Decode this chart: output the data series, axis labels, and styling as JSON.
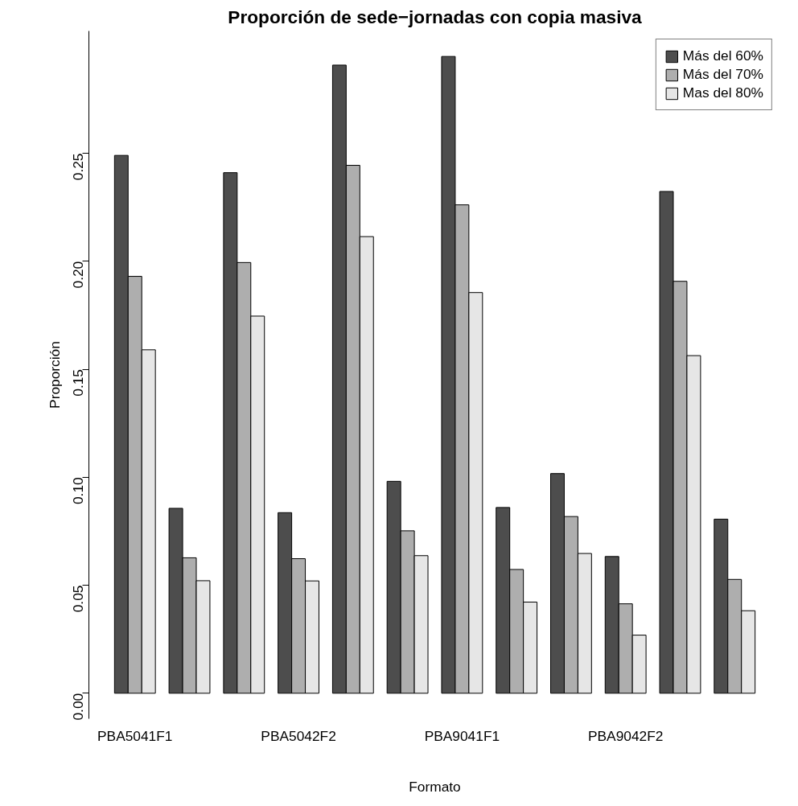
{
  "chart_data": {
    "type": "bar",
    "title": "Proporción de sede−jornadas con copia masiva",
    "xlabel": "Formato",
    "ylabel": "Proporción",
    "categories": [
      "PBA5041F1",
      null,
      null,
      "PBA5042F2",
      null,
      null,
      "PBA9041F1",
      null,
      null,
      "PBA9042F2",
      null,
      null
    ],
    "series": [
      {
        "name": "Más del 60%",
        "color": "#4d4d4d",
        "values": [
          0.249,
          0.0856,
          0.241,
          0.0836,
          0.2908,
          0.0981,
          0.2948,
          0.086,
          0.1017,
          0.0633,
          0.2323,
          0.0806
        ]
      },
      {
        "name": "Más del 70%",
        "color": "#aeaeae",
        "values": [
          0.193,
          0.0627,
          0.1994,
          0.0623,
          0.2444,
          0.0752,
          0.2261,
          0.0573,
          0.0818,
          0.0414,
          0.1907,
          0.0527
        ]
      },
      {
        "name": "Mas del 80%",
        "color": "#e6e6e6",
        "values": [
          0.159,
          0.0521,
          0.1746,
          0.052,
          0.2114,
          0.0637,
          0.1855,
          0.0422,
          0.0647,
          0.0269,
          0.1563,
          0.0382
        ]
      }
    ],
    "ylim": [
      -0.0118,
      0.3066
    ],
    "yticks": [
      {
        "value": 0,
        "label": "0.00"
      },
      {
        "value": 0.05,
        "label": "0.05"
      },
      {
        "value": 0.1,
        "label": "0.10"
      },
      {
        "value": 0.15,
        "label": "0.15"
      },
      {
        "value": 0.2,
        "label": "0.20"
      },
      {
        "value": 0.25,
        "label": "0.25"
      }
    ],
    "grid": false,
    "legend": "top right"
  }
}
